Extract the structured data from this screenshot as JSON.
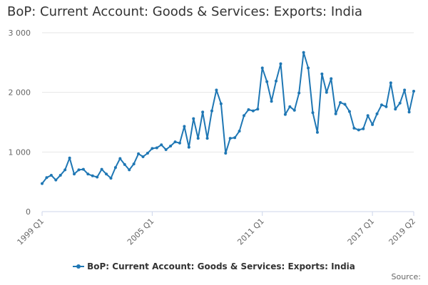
{
  "title": "BoP: Current Account: Goods & Services: Exports: India",
  "source_label": "Source:",
  "colors": {
    "series": "#1f77b4",
    "grid": "#e6e6e6",
    "axis": "#ccd6eb",
    "text": "#333333"
  },
  "chart_data": {
    "type": "line",
    "title": "BoP: Current Account: Goods & Services: Exports: India",
    "y_ticks": [
      "0",
      "1 000",
      "2 000",
      "3 000"
    ],
    "ylim": [
      0,
      3000
    ],
    "x_ticks": [
      "1999 Q1",
      "2005 Q1",
      "2011 Q1",
      "2017 Q1",
      "2019 Q2"
    ],
    "grid": true,
    "legend_position": "bottom-center",
    "series": [
      {
        "name": "BoP: Current Account: Goods & Services: Exports: India",
        "x": [
          "1999 Q1",
          "1999 Q2",
          "1999 Q3",
          "1999 Q4",
          "2000 Q1",
          "2000 Q2",
          "2000 Q3",
          "2000 Q4",
          "2001 Q1",
          "2001 Q2",
          "2001 Q3",
          "2001 Q4",
          "2002 Q1",
          "2002 Q2",
          "2002 Q3",
          "2002 Q4",
          "2003 Q1",
          "2003 Q2",
          "2003 Q3",
          "2003 Q4",
          "2004 Q1",
          "2004 Q2",
          "2004 Q3",
          "2004 Q4",
          "2005 Q1",
          "2005 Q2",
          "2005 Q3",
          "2005 Q4",
          "2006 Q1",
          "2006 Q2",
          "2006 Q3",
          "2006 Q4",
          "2007 Q1",
          "2007 Q2",
          "2007 Q3",
          "2007 Q4",
          "2008 Q1",
          "2008 Q2",
          "2008 Q3",
          "2008 Q4",
          "2009 Q1",
          "2009 Q2",
          "2009 Q3",
          "2009 Q4",
          "2010 Q1",
          "2010 Q2",
          "2010 Q3",
          "2010 Q4",
          "2011 Q1",
          "2011 Q2",
          "2011 Q3",
          "2011 Q4",
          "2012 Q1",
          "2012 Q2",
          "2012 Q3",
          "2012 Q4",
          "2013 Q1",
          "2013 Q2",
          "2013 Q3",
          "2013 Q4",
          "2014 Q1",
          "2014 Q2",
          "2014 Q3",
          "2014 Q4",
          "2015 Q1",
          "2015 Q2",
          "2015 Q3",
          "2015 Q4",
          "2016 Q1",
          "2016 Q2",
          "2016 Q3",
          "2016 Q4",
          "2017 Q1",
          "2017 Q2",
          "2017 Q3",
          "2017 Q4",
          "2018 Q1",
          "2018 Q2",
          "2018 Q3",
          "2018 Q4",
          "2019 Q1",
          "2019 Q2"
        ],
        "values": [
          470,
          570,
          610,
          530,
          610,
          700,
          900,
          630,
          700,
          710,
          630,
          600,
          580,
          710,
          630,
          560,
          740,
          890,
          790,
          700,
          800,
          970,
          920,
          980,
          1060,
          1070,
          1120,
          1040,
          1100,
          1170,
          1150,
          1430,
          1080,
          1560,
          1230,
          1670,
          1230,
          1690,
          2040,
          1810,
          980,
          1230,
          1240,
          1350,
          1610,
          1710,
          1690,
          1720,
          2410,
          2180,
          1850,
          2190,
          2480,
          1630,
          1760,
          1700,
          1990,
          2670,
          2410,
          1660,
          1330,
          2310,
          2000,
          2230,
          1640,
          1830,
          1800,
          1680,
          1400,
          1370,
          1390,
          1610,
          1460,
          1640,
          1790,
          1760,
          2160,
          1720,
          1820,
          2040,
          1670,
          2020
        ]
      }
    ]
  }
}
